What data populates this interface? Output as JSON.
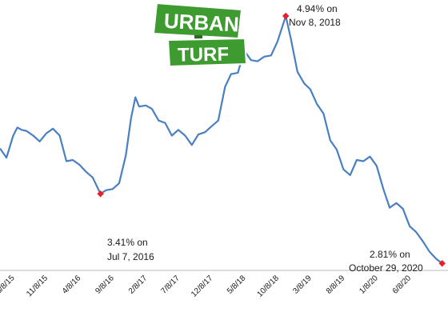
{
  "logo": {
    "line1": "URBAN",
    "line2": "TURF"
  },
  "colors": {
    "line": "#4a7fc1",
    "marker": "#e8202a",
    "logo_green": "#3d9b2f",
    "logo_border": "#ffffff"
  },
  "chart_data": {
    "type": "line",
    "title": "",
    "xlabel": "",
    "ylabel": "",
    "x_tick_labels": [
      "6/8/15",
      "11/8/15",
      "4/8/16",
      "9/8/16",
      "2/8/17",
      "7/8/17",
      "12/8/17",
      "5/8/18",
      "10/8/18",
      "3/8/19",
      "8/8/19",
      "1/8/20",
      "6/8/20"
    ],
    "x": [
      "2015-04-01",
      "2015-05-01",
      "2015-06-01",
      "2015-06-20",
      "2015-07-10",
      "2015-08-01",
      "2015-09-01",
      "2015-10-01",
      "2015-11-01",
      "2015-12-01",
      "2016-01-01",
      "2016-02-01",
      "2016-03-01",
      "2016-04-01",
      "2016-05-01",
      "2016-06-01",
      "2016-07-07",
      "2016-08-01",
      "2016-09-01",
      "2016-10-01",
      "2016-11-01",
      "2016-11-25",
      "2016-12-15",
      "2017-01-01",
      "2017-02-01",
      "2017-03-01",
      "2017-04-01",
      "2017-05-01",
      "2017-06-01",
      "2017-07-01",
      "2017-08-01",
      "2017-09-01",
      "2017-10-01",
      "2017-11-01",
      "2017-12-01",
      "2018-01-01",
      "2018-02-01",
      "2018-03-01",
      "2018-04-01",
      "2018-05-01",
      "2018-06-01",
      "2018-07-01",
      "2018-08-01",
      "2018-09-01",
      "2018-10-01",
      "2018-11-08",
      "2018-12-01",
      "2019-01-01",
      "2019-02-01",
      "2019-03-01",
      "2019-04-01",
      "2019-05-01",
      "2019-06-01",
      "2019-07-01",
      "2019-08-01",
      "2019-09-01",
      "2019-10-01",
      "2019-11-01",
      "2019-12-01",
      "2020-01-01",
      "2020-02-01",
      "2020-03-01",
      "2020-04-01",
      "2020-05-01",
      "2020-06-01",
      "2020-07-01",
      "2020-08-01",
      "2020-09-01",
      "2020-10-01",
      "2020-10-29"
    ],
    "values": [
      3.8,
      3.72,
      3.91,
      3.98,
      3.96,
      3.95,
      3.91,
      3.86,
      3.93,
      3.97,
      3.91,
      3.69,
      3.7,
      3.66,
      3.6,
      3.55,
      3.41,
      3.44,
      3.45,
      3.5,
      3.74,
      4.06,
      4.24,
      4.16,
      4.17,
      4.14,
      4.04,
      4.02,
      3.91,
      3.96,
      3.91,
      3.83,
      3.92,
      3.94,
      3.99,
      4.04,
      4.33,
      4.44,
      4.45,
      4.64,
      4.56,
      4.55,
      4.59,
      4.6,
      4.72,
      4.94,
      4.75,
      4.46,
      4.36,
      4.31,
      4.18,
      4.1,
      3.87,
      3.79,
      3.62,
      3.57,
      3.7,
      3.69,
      3.73,
      3.65,
      3.45,
      3.29,
      3.33,
      3.28,
      3.13,
      3.08,
      3.0,
      2.91,
      2.85,
      2.81
    ],
    "ylim": [
      2.75,
      5.05
    ],
    "grid": false,
    "annotations": [
      {
        "label_line1": "4.94% on",
        "label_line2": "Nov 8, 2018",
        "x": "2018-11-08",
        "y": 4.94
      },
      {
        "label_line1": "3.41% on",
        "label_line2": "Jul 7, 2016",
        "x": "2016-07-07",
        "y": 3.41
      },
      {
        "label_line1": "2.81% on",
        "label_line2": "October 29, 2020",
        "x": "2020-10-29",
        "y": 2.81
      }
    ]
  }
}
